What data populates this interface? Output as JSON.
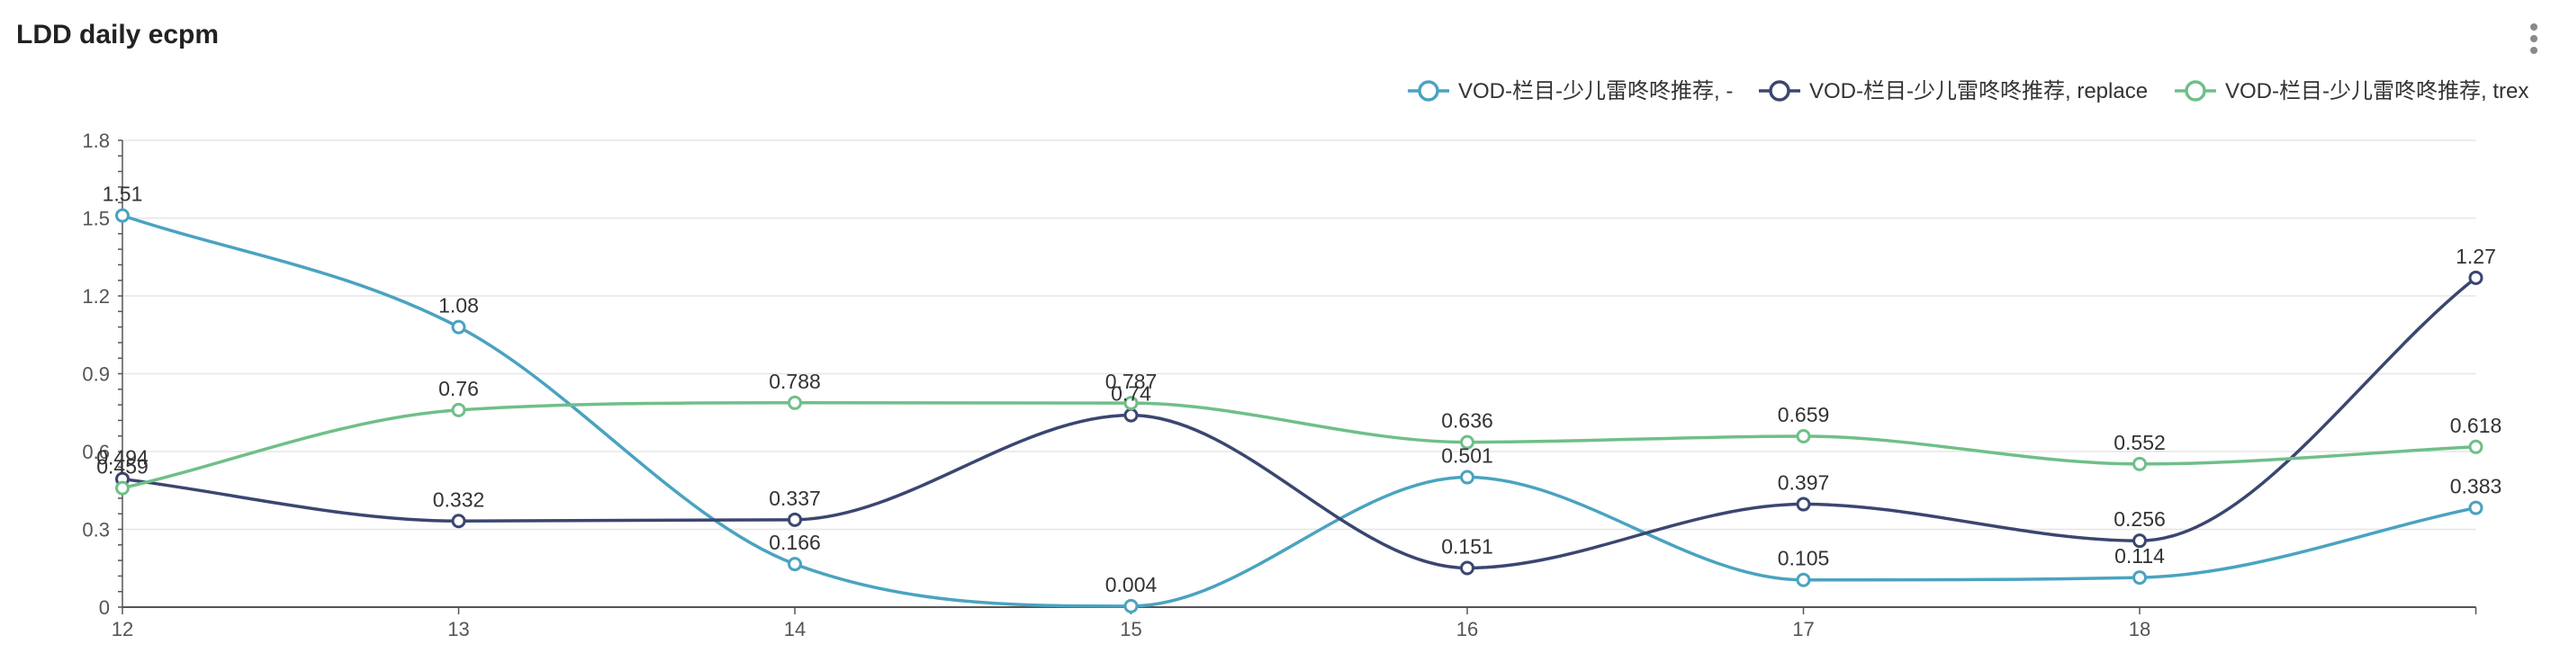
{
  "header": {
    "title": "LDD daily ecpm",
    "menu_icon": "more-vertical-icon"
  },
  "chart_data": {
    "type": "line",
    "title": "LDD daily ecpm",
    "x": [
      "12",
      "13",
      "14",
      "15",
      "16",
      "17",
      "18",
      ""
    ],
    "xtick_labels": [
      "12",
      "13",
      "14",
      "15",
      "16",
      "17",
      "18"
    ],
    "ylim": [
      0,
      1.8
    ],
    "yticks": [
      "0",
      "0.3",
      "0.6",
      "0.9",
      "1.2",
      "1.5",
      "1.8"
    ],
    "grid": true,
    "legend_position": "top-right",
    "smooth": true,
    "series": [
      {
        "name": "VOD-栏目-少儿雷咚咚推荐, -",
        "color": "#4aa3c0",
        "values": [
          1.51,
          1.08,
          0.166,
          0.004,
          0.501,
          0.105,
          0.114,
          0.383
        ],
        "labels": [
          "1.51",
          "1.08",
          "0.166",
          "0.004",
          "0.501",
          "0.105",
          "0.114",
          "0.383"
        ]
      },
      {
        "name": "VOD-栏目-少儿雷咚咚推荐, replace",
        "color": "#3b4670",
        "values": [
          0.494,
          0.332,
          0.337,
          0.74,
          0.151,
          0.397,
          0.256,
          1.27
        ],
        "labels": [
          "0.494",
          "0.332",
          "0.337",
          "0.74",
          "0.151",
          "0.397",
          "0.256",
          "1.27"
        ]
      },
      {
        "name": "VOD-栏目-少儿雷咚咚推荐, trex",
        "color": "#6fbf88",
        "values": [
          0.459,
          0.76,
          0.788,
          0.787,
          0.636,
          0.659,
          0.552,
          0.618
        ],
        "labels": [
          "0.459",
          "0.76",
          "0.788",
          "0.787",
          "0.636",
          "0.659",
          "0.552",
          "0.618"
        ]
      }
    ]
  }
}
